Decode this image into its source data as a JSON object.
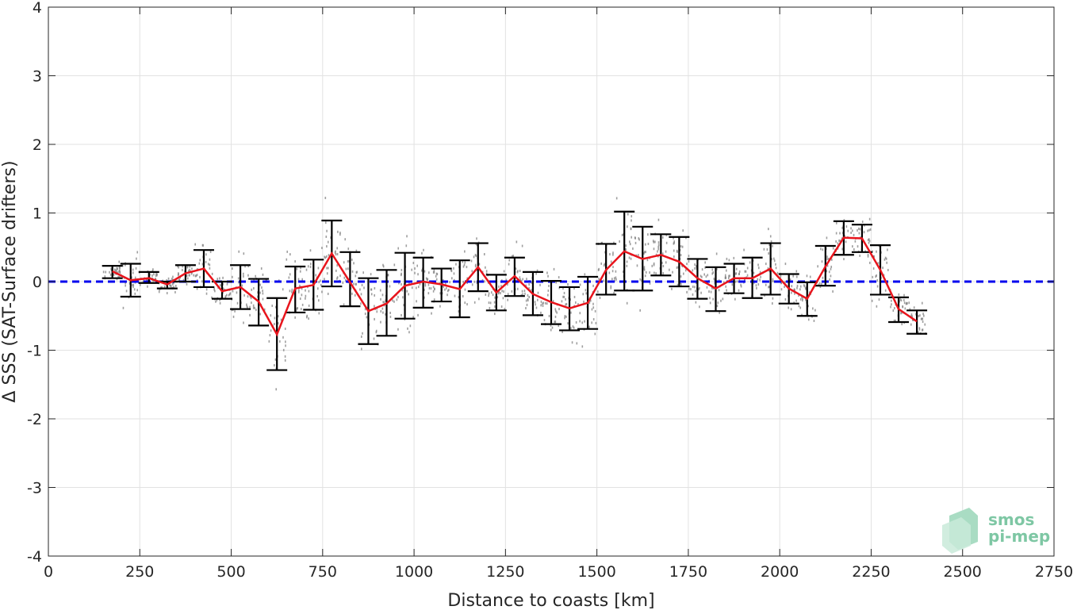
{
  "chart_data": {
    "type": "line",
    "title": "",
    "xlabel": "Distance to coasts [km]",
    "ylabel": "Δ SSS (SAT-Surface drifters)",
    "xlim": [
      0,
      2750
    ],
    "ylim": [
      -4,
      4
    ],
    "xticks": [
      0,
      250,
      500,
      750,
      1000,
      1250,
      1500,
      1750,
      2000,
      2250,
      2500,
      2750
    ],
    "yticks": [
      -4,
      -3,
      -2,
      -1,
      0,
      1,
      2,
      3,
      4
    ],
    "grid": true,
    "reference_line": {
      "y": 0,
      "style": "dashed",
      "color": "#0000ee"
    },
    "colors": {
      "mean_line": "#e8141c",
      "error_bars": "#000000",
      "scatter": "#7f7f7f"
    },
    "series": [
      {
        "type": "errorbar",
        "x": [
          175,
          225,
          275,
          325,
          375,
          425,
          475,
          525,
          575,
          625,
          675,
          725,
          775,
          825,
          875,
          925,
          975,
          1025,
          1075,
          1125,
          1175,
          1225,
          1275,
          1325,
          1375,
          1425,
          1475,
          1525,
          1575,
          1625,
          1675,
          1725,
          1775,
          1825,
          1875,
          1925,
          1975,
          2025,
          2075,
          2125,
          2175,
          2225,
          2275,
          2325,
          2375
        ],
        "mean": [
          0.15,
          0.02,
          0.05,
          -0.04,
          0.12,
          0.19,
          -0.14,
          -0.08,
          -0.29,
          -0.77,
          -0.1,
          -0.05,
          0.41,
          -0.01,
          -0.43,
          -0.32,
          -0.06,
          0.0,
          -0.04,
          -0.11,
          0.21,
          -0.16,
          0.08,
          -0.18,
          -0.3,
          -0.39,
          -0.31,
          0.17,
          0.44,
          0.33,
          0.39,
          0.29,
          0.05,
          -0.1,
          0.05,
          0.05,
          0.19,
          -0.1,
          -0.25,
          0.22,
          0.64,
          0.63,
          0.17,
          -0.4,
          -0.58
        ],
        "lower": [
          0.05,
          -0.22,
          -0.02,
          -0.1,
          0.0,
          -0.08,
          -0.25,
          -0.4,
          -0.64,
          -1.29,
          -0.45,
          -0.41,
          -0.07,
          -0.36,
          -0.91,
          -0.79,
          -0.54,
          -0.38,
          -0.29,
          -0.52,
          -0.14,
          -0.42,
          -0.21,
          -0.49,
          -0.62,
          -0.71,
          -0.69,
          -0.19,
          -0.13,
          -0.13,
          0.09,
          -0.07,
          -0.25,
          -0.43,
          -0.17,
          -0.24,
          -0.19,
          -0.32,
          -0.5,
          -0.06,
          0.39,
          0.43,
          -0.19,
          -0.59,
          -0.76
        ],
        "upper": [
          0.23,
          0.26,
          0.14,
          0.0,
          0.24,
          0.46,
          0.0,
          0.24,
          0.04,
          -0.24,
          0.22,
          0.32,
          0.89,
          0.43,
          0.05,
          0.17,
          0.42,
          0.35,
          0.19,
          0.31,
          0.56,
          0.1,
          0.35,
          0.14,
          0.01,
          -0.08,
          0.07,
          0.55,
          1.02,
          0.8,
          0.69,
          0.65,
          0.33,
          0.21,
          0.26,
          0.35,
          0.56,
          0.11,
          -0.01,
          0.52,
          0.88,
          0.83,
          0.53,
          -0.23,
          -0.42
        ]
      }
    ]
  },
  "logo": {
    "line1": "smos",
    "line2": "pi-mep"
  }
}
